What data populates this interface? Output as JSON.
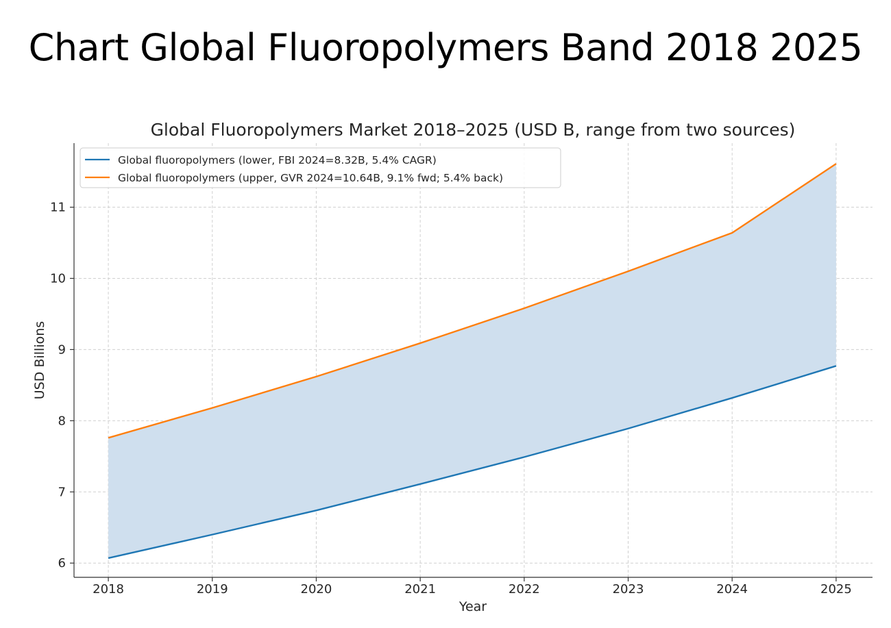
{
  "page": {
    "title": "Chart Global Fluoropolymers Band 2018 2025"
  },
  "chart_data": {
    "type": "area",
    "title": "Global Fluoropolymers Market 2018–2025 (USD B, range from two sources)",
    "xlabel": "Year",
    "ylabel": "USD Billions",
    "x": [
      2018,
      2019,
      2020,
      2021,
      2022,
      2023,
      2024,
      2025
    ],
    "xlim": [
      2017.67,
      2025.35
    ],
    "ylim": [
      5.8,
      11.9
    ],
    "yticks": [
      6,
      7,
      8,
      9,
      10,
      11
    ],
    "grid": true,
    "legend": "top-left",
    "band_between_series": true,
    "band_color": "#cfdfee",
    "series": [
      {
        "name": "Global fluoropolymers (lower, FBI 2024=8.32B, 5.4% CAGR)",
        "color": "#1f77b4",
        "values": [
          6.07,
          6.4,
          6.74,
          7.11,
          7.49,
          7.89,
          8.32,
          8.77
        ]
      },
      {
        "name": "Global fluoropolymers (upper, GVR 2024=10.64B, 9.1% fwd; 5.4% back)",
        "color": "#ff7f0e",
        "values": [
          7.76,
          8.18,
          8.62,
          9.09,
          9.58,
          10.1,
          10.64,
          11.61
        ]
      }
    ]
  }
}
